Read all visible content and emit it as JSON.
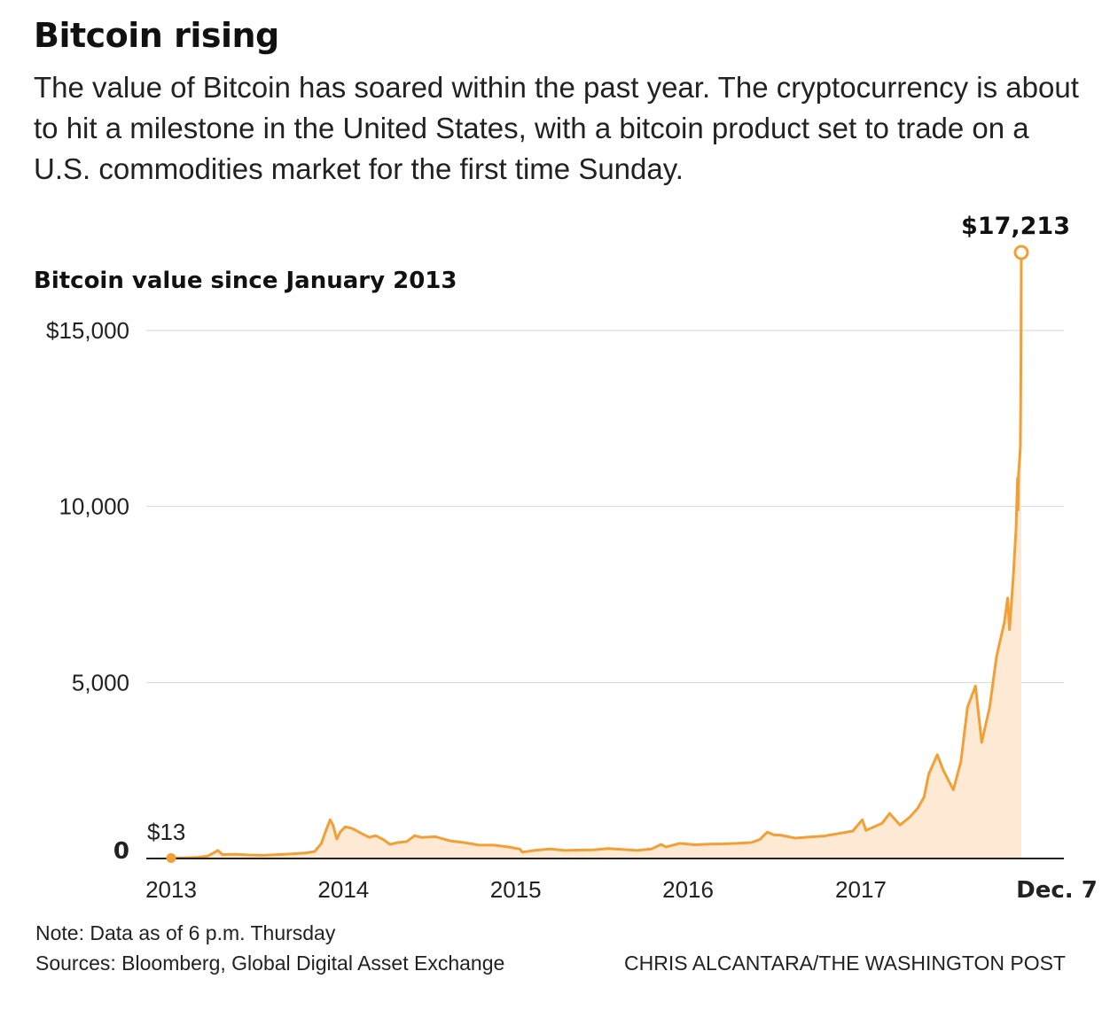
{
  "header": {
    "title": "Bitcoin rising",
    "subtitle": "The value of Bitcoin has soared within the past year. The cryptocurrency is about to hit a milestone in the United States, with a bitcoin product set to trade on a U.S. commodities market for the first time Sunday."
  },
  "footer": {
    "note": "Note: Data as of 6 p.m. Thursday",
    "sources": "Sources: Bloomberg, Global Digital Asset Exchange",
    "credit": "CHRIS ALCANTARA/THE WASHINGTON POST"
  },
  "colors": {
    "line": "#f2a035",
    "area": "#fde9d4",
    "grid": "#d6d6d6",
    "axis": "#222222",
    "text": "#222222"
  },
  "chart_data": {
    "type": "area",
    "title": "Bitcoin value since January 2013",
    "xlabel": "",
    "ylabel": "",
    "ylim": [
      0,
      17213
    ],
    "xlim": [
      "2013-01-01",
      "2017-12-07"
    ],
    "grid": true,
    "y_ticks": [
      {
        "value": 15000,
        "label": "$15,000"
      },
      {
        "value": 10000,
        "label": "10,000"
      },
      {
        "value": 5000,
        "label": "5,000"
      },
      {
        "value": 0,
        "label": "0"
      }
    ],
    "x_ticks": [
      {
        "value": "2013-01-01",
        "label": "2013"
      },
      {
        "value": "2014-01-01",
        "label": "2014"
      },
      {
        "value": "2015-01-01",
        "label": "2015"
      },
      {
        "value": "2016-01-01",
        "label": "2016"
      },
      {
        "value": "2017-01-01",
        "label": "2017"
      },
      {
        "value": "2017-12-07",
        "label": "Dec. 7"
      }
    ],
    "annotations": [
      {
        "x": "2013-01-01",
        "y": 13,
        "label": "$13"
      },
      {
        "x": "2017-12-07",
        "y": 17213,
        "label": "$17,213"
      }
    ],
    "series": [
      {
        "points": [
          [
            "2013-01-01",
            13
          ],
          [
            "2013-02-01",
            20
          ],
          [
            "2013-03-01",
            35
          ],
          [
            "2013-03-20",
            70
          ],
          [
            "2013-04-10",
            230
          ],
          [
            "2013-04-20",
            110
          ],
          [
            "2013-05-15",
            120
          ],
          [
            "2013-06-15",
            100
          ],
          [
            "2013-07-15",
            90
          ],
          [
            "2013-08-15",
            110
          ],
          [
            "2013-09-15",
            130
          ],
          [
            "2013-10-15",
            160
          ],
          [
            "2013-11-01",
            200
          ],
          [
            "2013-11-15",
            420
          ],
          [
            "2013-11-25",
            800
          ],
          [
            "2013-12-04",
            1100
          ],
          [
            "2013-12-10",
            950
          ],
          [
            "2013-12-18",
            550
          ],
          [
            "2013-12-25",
            750
          ],
          [
            "2014-01-05",
            900
          ],
          [
            "2014-01-20",
            850
          ],
          [
            "2014-02-10",
            700
          ],
          [
            "2014-02-25",
            600
          ],
          [
            "2014-03-10",
            650
          ],
          [
            "2014-03-25",
            550
          ],
          [
            "2014-04-10",
            400
          ],
          [
            "2014-04-25",
            450
          ],
          [
            "2014-05-15",
            480
          ],
          [
            "2014-06-01",
            650
          ],
          [
            "2014-06-15",
            600
          ],
          [
            "2014-07-15",
            620
          ],
          [
            "2014-08-15",
            500
          ],
          [
            "2014-09-15",
            450
          ],
          [
            "2014-10-15",
            380
          ],
          [
            "2014-11-15",
            380
          ],
          [
            "2014-12-15",
            330
          ],
          [
            "2015-01-10",
            270
          ],
          [
            "2015-01-15",
            180
          ],
          [
            "2015-02-15",
            240
          ],
          [
            "2015-03-15",
            270
          ],
          [
            "2015-04-15",
            230
          ],
          [
            "2015-05-15",
            240
          ],
          [
            "2015-06-15",
            245
          ],
          [
            "2015-07-15",
            285
          ],
          [
            "2015-08-15",
            260
          ],
          [
            "2015-09-15",
            230
          ],
          [
            "2015-10-15",
            270
          ],
          [
            "2015-11-05",
            400
          ],
          [
            "2015-11-15",
            330
          ],
          [
            "2015-12-15",
            430
          ],
          [
            "2016-01-15",
            390
          ],
          [
            "2016-02-15",
            410
          ],
          [
            "2016-03-15",
            415
          ],
          [
            "2016-04-15",
            430
          ],
          [
            "2016-05-15",
            455
          ],
          [
            "2016-06-01",
            540
          ],
          [
            "2016-06-17",
            750
          ],
          [
            "2016-07-01",
            670
          ],
          [
            "2016-07-15",
            665
          ],
          [
            "2016-08-15",
            580
          ],
          [
            "2016-09-15",
            610
          ],
          [
            "2016-10-15",
            640
          ],
          [
            "2016-11-15",
            710
          ],
          [
            "2016-12-15",
            780
          ],
          [
            "2017-01-04",
            1100
          ],
          [
            "2017-01-12",
            800
          ],
          [
            "2017-02-15",
            1000
          ],
          [
            "2017-03-03",
            1280
          ],
          [
            "2017-03-25",
            950
          ],
          [
            "2017-04-15",
            1180
          ],
          [
            "2017-05-01",
            1420
          ],
          [
            "2017-05-15",
            1750
          ],
          [
            "2017-05-25",
            2400
          ],
          [
            "2017-06-12",
            2950
          ],
          [
            "2017-06-25",
            2500
          ],
          [
            "2017-07-16",
            1950
          ],
          [
            "2017-08-01",
            2750
          ],
          [
            "2017-08-15",
            4300
          ],
          [
            "2017-09-01",
            4900
          ],
          [
            "2017-09-14",
            3300
          ],
          [
            "2017-10-01",
            4300
          ],
          [
            "2017-10-15",
            5700
          ],
          [
            "2017-10-20",
            6000
          ],
          [
            "2017-11-01",
            6700
          ],
          [
            "2017-11-08",
            7400
          ],
          [
            "2017-11-12",
            6500
          ],
          [
            "2017-11-20",
            8000
          ],
          [
            "2017-11-26",
            9400
          ],
          [
            "2017-11-29",
            10800
          ],
          [
            "2017-11-30",
            9900
          ],
          [
            "2017-12-01",
            10900
          ],
          [
            "2017-12-03",
            11300
          ],
          [
            "2017-12-05",
            11700
          ],
          [
            "2017-12-06",
            13800
          ],
          [
            "2017-12-07",
            17213
          ]
        ]
      }
    ]
  }
}
